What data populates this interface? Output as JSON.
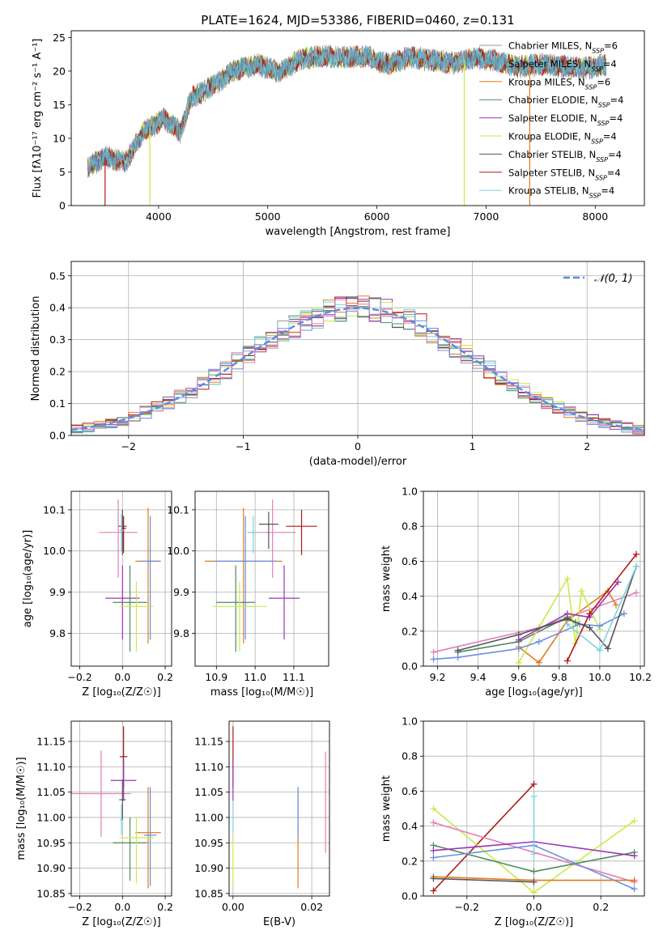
{
  "colors": {
    "Chabrier MILES": "#999999",
    "Salpeter MILES": "#5aa8c8",
    "Kroupa MILES": "#e07b20",
    "Chabrier ELODIE": "#4f8a5f",
    "Salpeter ELODIE": "#9b35b5",
    "Kroupa ELODIE": "#c9ea4a",
    "Chabrier STELIB": "#555555",
    "Salpeter STELIB": "#b01818",
    "Kroupa STELIB": "#7fd3de",
    "blue": "#6a8fe0",
    "pink": "#e27fba",
    "normal": "#5b8be0"
  },
  "chart_data": [
    {
      "id": "spectrum",
      "type": "line",
      "title": "PLATE=1624, MJD=53386, FIBERID=0460, z=0.131",
      "xlabel": "wavelength [Angstrom, rest frame]",
      "ylabel": "Flux [fλ10⁻¹⁷ erg cm⁻² s⁻¹ A⁻¹]",
      "xlim": [
        3200,
        8450
      ],
      "ylim": [
        0,
        26
      ],
      "xticks": [
        "4000",
        "5000",
        "6000",
        "7000",
        "8000"
      ],
      "xtick_values": [
        4000,
        5000,
        6000,
        7000,
        8000
      ],
      "yticks": [
        "0",
        "5",
        "10",
        "15",
        "20",
        "25"
      ],
      "ytick_values": [
        0,
        5,
        10,
        15,
        20,
        25
      ],
      "grid": false,
      "legend_position": "top-right",
      "legend": [
        {
          "label": "Chabrier MILES, N",
          "sub": "SSP",
          "suffix": "=6",
          "color_key": "Chabrier MILES"
        },
        {
          "label": "Salpeter MILES, N",
          "sub": "SSP",
          "suffix": "=4",
          "color_key": "Salpeter MILES"
        },
        {
          "label": "Kroupa MILES, N",
          "sub": "SSP",
          "suffix": "=6",
          "color_key": "Kroupa MILES"
        },
        {
          "label": "Chabrier ELODIE, N",
          "sub": "SSP",
          "suffix": "=4",
          "color_key": "Chabrier ELODIE"
        },
        {
          "label": "Salpeter ELODIE, N",
          "sub": "SSP",
          "suffix": "=4",
          "color_key": "Salpeter ELODIE"
        },
        {
          "label": "Kroupa ELODIE, N",
          "sub": "SSP",
          "suffix": "=4",
          "color_key": "Kroupa ELODIE"
        },
        {
          "label": "Chabrier STELIB, N",
          "sub": "SSP",
          "suffix": "=4",
          "color_key": "Chabrier STELIB"
        },
        {
          "label": "Salpeter STELIB, N",
          "sub": "SSP",
          "suffix": "=4",
          "color_key": "Salpeter STELIB"
        },
        {
          "label": "Kroupa STELIB, N",
          "sub": "SSP",
          "suffix": "=4",
          "color_key": "Kroupa STELIB"
        }
      ],
      "envelope": {
        "x": [
          3350,
          3500,
          3700,
          3850,
          3950,
          4050,
          4200,
          4300,
          4500,
          4700,
          4900,
          5100,
          5300,
          5500,
          5700,
          5900,
          6100,
          6300,
          6500,
          6700,
          6900,
          7100,
          7300,
          7500,
          7700,
          7900,
          8100
        ],
        "y": [
          5.6,
          7.2,
          6.5,
          10.8,
          11.8,
          12.9,
          11.0,
          16.0,
          17.8,
          20.2,
          21.0,
          19.8,
          21.8,
          22.2,
          22.0,
          22.2,
          21.0,
          22.1,
          21.6,
          21.2,
          22.0,
          21.5,
          20.6,
          21.0,
          20.7,
          20.4,
          20.9
        ]
      },
      "dropouts": [
        {
          "x": 3510,
          "color_key": "Salpeter STELIB"
        },
        {
          "x": 3920,
          "color_key": "Kroupa ELODIE"
        },
        {
          "x": 6800,
          "color_key": "Kroupa ELODIE"
        },
        {
          "x": 7400,
          "color_key": "Kroupa MILES"
        }
      ]
    },
    {
      "id": "residuals",
      "type": "histogram",
      "xlabel": "(data-model)/error",
      "ylabel": "Normed distribution",
      "xlim": [
        -2.5,
        2.5
      ],
      "ylim": [
        0,
        0.545
      ],
      "xticks": [
        "−2",
        "−1",
        "0",
        "1",
        "2"
      ],
      "xtick_values": [
        -2,
        -1,
        0,
        1,
        2
      ],
      "yticks": [
        "0.0",
        "0.1",
        "0.2",
        "0.3",
        "0.4",
        "0.5"
      ],
      "ytick_values": [
        0,
        0.1,
        0.2,
        0.3,
        0.4,
        0.5
      ],
      "grid": true,
      "legend_position": "top-right",
      "legend": [
        {
          "label": "𝒩(0, 1)",
          "color_key": "normal",
          "style": "dashed"
        }
      ],
      "bin_width": 0.1,
      "x_start": -2.5,
      "series_color_keys": [
        "Chabrier MILES",
        "Kroupa MILES",
        "Chabrier ELODIE",
        "Salpeter ELODIE",
        "Kroupa ELODIE",
        "Chabrier STELIB",
        "Salpeter STELIB",
        "Kroupa STELIB",
        "blue",
        "pink"
      ]
    },
    {
      "id": "age-vs-Z",
      "type": "errorbar",
      "xlabel": "Z [log₁₀(Z/Z☉)]",
      "ylabel": "age  [log₁₀(age/yr)]",
      "xlim": [
        -0.24,
        0.23
      ],
      "ylim": [
        9.72,
        10.145
      ],
      "xticks": [
        "−0.2",
        "0.0",
        "0.2"
      ],
      "xtick_values": [
        -0.2,
        0.0,
        0.2
      ],
      "yticks": [
        "9.8",
        "9.9",
        "10.0",
        "10.1"
      ],
      "ytick_values": [
        9.8,
        9.9,
        10.0,
        10.1
      ],
      "grid": true,
      "points": [
        {
          "x": -0.02,
          "y": 10.045,
          "xerr": 0.09,
          "yerr_lo": 0.11,
          "yerr_hi": 0.08,
          "color_key": "pink"
        },
        {
          "x": 0.0,
          "y": 10.06,
          "xerr": 0.02,
          "yerr_lo": 0.07,
          "yerr_hi": 0.04,
          "color_key": "Chabrier STELIB"
        },
        {
          "x": 0.005,
          "y": 10.055,
          "xerr": 0.012,
          "yerr_lo": 0.06,
          "yerr_hi": 0.03,
          "color_key": "Salpeter STELIB"
        },
        {
          "x": -0.005,
          "y": 10.05,
          "xerr": 0.01,
          "yerr_lo": 0.05,
          "yerr_hi": 0.04,
          "color_key": "Kroupa STELIB"
        },
        {
          "x": 0.12,
          "y": 9.975,
          "xerr": 0.06,
          "yerr_lo": 0.2,
          "yerr_hi": 0.13,
          "color_key": "Kroupa MILES"
        },
        {
          "x": 0.13,
          "y": 9.975,
          "xerr": 0.04,
          "yerr_lo": 0.19,
          "yerr_hi": 0.11,
          "color_key": "blue"
        },
        {
          "x": 0.0,
          "y": 9.885,
          "xerr": 0.08,
          "yerr_lo": 0.1,
          "yerr_hi": 0.08,
          "color_key": "Salpeter ELODIE"
        },
        {
          "x": 0.035,
          "y": 9.875,
          "xerr": 0.08,
          "yerr_lo": 0.12,
          "yerr_hi": 0.09,
          "color_key": "Chabrier ELODIE"
        },
        {
          "x": 0.065,
          "y": 9.865,
          "xerr": 0.08,
          "yerr_lo": 0.11,
          "yerr_hi": 0.06,
          "color_key": "Kroupa ELODIE"
        }
      ]
    },
    {
      "id": "age-vs-mass",
      "type": "errorbar",
      "xlabel": "mass [log₁₀(M/M☉)]",
      "ylabel": "",
      "xlim": [
        10.845,
        11.19
      ],
      "ylim": [
        9.72,
        10.145
      ],
      "xticks": [
        "10.9",
        "11.0",
        "11.1"
      ],
      "xtick_values": [
        10.9,
        11.0,
        11.1
      ],
      "yticks": [
        "9.8",
        "9.9",
        "10.0",
        "10.1"
      ],
      "ytick_values": [
        9.8,
        9.9,
        10.0,
        10.1
      ],
      "grid": true,
      "points": [
        {
          "x": 11.045,
          "y": 10.045,
          "xerr": 0.06,
          "yerr_lo": 0.11,
          "yerr_hi": 0.08,
          "color_key": "pink"
        },
        {
          "x": 11.12,
          "y": 10.06,
          "xerr": 0.04,
          "yerr_lo": 0.07,
          "yerr_hi": 0.04,
          "color_key": "Salpeter STELIB"
        },
        {
          "x": 11.035,
          "y": 10.065,
          "xerr": 0.025,
          "yerr_lo": 0.06,
          "yerr_hi": 0.03,
          "color_key": "Chabrier STELIB"
        },
        {
          "x": 10.995,
          "y": 10.045,
          "xerr": 0.015,
          "yerr_lo": 0.05,
          "yerr_hi": 0.04,
          "color_key": "Kroupa STELIB"
        },
        {
          "x": 10.97,
          "y": 9.975,
          "xerr": 0.1,
          "yerr_lo": 0.2,
          "yerr_hi": 0.13,
          "color_key": "Kroupa MILES"
        },
        {
          "x": 10.975,
          "y": 9.975,
          "xerr": 0.08,
          "yerr_lo": 0.19,
          "yerr_hi": 0.11,
          "color_key": "blue"
        },
        {
          "x": 11.075,
          "y": 9.885,
          "xerr": 0.04,
          "yerr_lo": 0.1,
          "yerr_hi": 0.08,
          "color_key": "Salpeter ELODIE"
        },
        {
          "x": 10.95,
          "y": 9.875,
          "xerr": 0.05,
          "yerr_lo": 0.12,
          "yerr_hi": 0.09,
          "color_key": "Chabrier ELODIE"
        },
        {
          "x": 10.96,
          "y": 9.865,
          "xerr": 0.07,
          "yerr_lo": 0.11,
          "yerr_hi": 0.06,
          "color_key": "Kroupa ELODIE"
        }
      ]
    },
    {
      "id": "mass-weight-vs-age",
      "type": "line",
      "xlabel": "age  [log₁₀(age/yr)]",
      "ylabel": "mass weight",
      "xlim": [
        9.13,
        10.22
      ],
      "ylim": [
        0,
        1
      ],
      "xticks": [
        "9.2",
        "9.4",
        "9.6",
        "9.8",
        "10.0",
        "10.2"
      ],
      "xtick_values": [
        9.2,
        9.4,
        9.6,
        9.8,
        10.0,
        10.2
      ],
      "yticks": [
        "0.0",
        "0.2",
        "0.4",
        "0.6",
        "0.8",
        "1.0"
      ],
      "ytick_values": [
        0,
        0.2,
        0.4,
        0.6,
        0.8,
        1.0
      ],
      "grid": true,
      "series": [
        {
          "color_key": "pink",
          "x": [
            9.18,
            9.7,
            10.18
          ],
          "y": [
            0.08,
            0.22,
            0.42
          ]
        },
        {
          "color_key": "Chabrier ELODIE",
          "x": [
            9.3,
            9.6,
            9.84,
            9.88
          ],
          "y": [
            0.08,
            0.14,
            0.28,
            0.25
          ]
        },
        {
          "color_key": "Kroupa MILES",
          "x": [
            9.6,
            9.7,
            9.84,
            10.04,
            10.08
          ],
          "y": [
            0.11,
            0.02,
            0.26,
            0.43,
            0.35
          ]
        },
        {
          "color_key": "Kroupa ELODIE",
          "x": [
            9.6,
            9.84,
            9.88,
            9.91,
            10.0
          ],
          "y": [
            0.02,
            0.5,
            0.13,
            0.43,
            0.21
          ]
        },
        {
          "color_key": "Salpeter ELODIE",
          "x": [
            9.6,
            9.84,
            9.95,
            10.09
          ],
          "y": [
            0.15,
            0.3,
            0.28,
            0.48
          ]
        },
        {
          "color_key": "blue",
          "x": [
            9.18,
            9.3,
            9.6,
            9.7,
            9.9,
            10.0,
            10.12
          ],
          "y": [
            0.04,
            0.05,
            0.1,
            0.14,
            0.24,
            0.23,
            0.3
          ]
        },
        {
          "color_key": "Chabrier STELIB",
          "x": [
            9.3,
            9.6,
            9.84,
            9.95,
            10.04,
            10.18
          ],
          "y": [
            0.09,
            0.18,
            0.27,
            0.22,
            0.1,
            0.57
          ]
        },
        {
          "color_key": "Salpeter STELIB",
          "x": [
            9.84,
            9.95,
            10.18
          ],
          "y": [
            0.03,
            0.3,
            0.64
          ]
        },
        {
          "color_key": "Kroupa STELIB",
          "x": [
            9.84,
            10.0,
            10.18
          ],
          "y": [
            0.24,
            0.09,
            0.57
          ]
        }
      ]
    },
    {
      "id": "mass-vs-Z",
      "type": "errorbar",
      "xlabel": "Z [log₁₀(Z/Z☉)]",
      "ylabel": "mass [log₁₀(M/M☉)]",
      "xlim": [
        -0.24,
        0.23
      ],
      "ylim": [
        10.845,
        11.19
      ],
      "xticks": [
        "−0.2",
        "0.0",
        "0.2"
      ],
      "xtick_values": [
        -0.2,
        0.0,
        0.2
      ],
      "yticks": [
        "10.85",
        "10.90",
        "10.95",
        "11.00",
        "11.05",
        "11.10",
        "11.15"
      ],
      "ytick_values": [
        10.85,
        10.9,
        10.95,
        11.0,
        11.05,
        11.1,
        11.15
      ],
      "grid": true,
      "points": [
        {
          "x": 0.005,
          "y": 11.12,
          "xerr": 0.018,
          "yerr_lo": 0.06,
          "yerr_hi": 0.06,
          "color_key": "Salpeter STELIB"
        },
        {
          "x": -0.1,
          "y": 11.047,
          "xerr": 0.14,
          "yerr_lo": 0.085,
          "yerr_hi": 0.085,
          "color_key": "pink"
        },
        {
          "x": 0.005,
          "y": 11.073,
          "xerr": 0.06,
          "yerr_lo": 0.04,
          "yerr_hi": 0.04,
          "color_key": "Salpeter ELODIE"
        },
        {
          "x": 0.0,
          "y": 11.035,
          "xerr": 0.015,
          "yerr_lo": 0.04,
          "yerr_hi": 0.04,
          "color_key": "Chabrier STELIB"
        },
        {
          "x": 0.12,
          "y": 10.97,
          "xerr": 0.06,
          "yerr_lo": 0.11,
          "yerr_hi": 0.09,
          "color_key": "Kroupa MILES"
        },
        {
          "x": 0.13,
          "y": 10.965,
          "xerr": 0.03,
          "yerr_lo": 0.1,
          "yerr_hi": 0.095,
          "color_key": "blue"
        },
        {
          "x": -0.005,
          "y": 10.995,
          "xerr": 0.008,
          "yerr_lo": 0.03,
          "yerr_hi": 0.03,
          "color_key": "Kroupa STELIB"
        },
        {
          "x": 0.035,
          "y": 10.95,
          "xerr": 0.08,
          "yerr_lo": 0.075,
          "yerr_hi": 0.05,
          "color_key": "Chabrier ELODIE"
        },
        {
          "x": 0.065,
          "y": 10.96,
          "xerr": 0.08,
          "yerr_lo": 0.09,
          "yerr_hi": 0.04,
          "color_key": "Kroupa ELODIE"
        }
      ]
    },
    {
      "id": "mass-vs-ebv",
      "type": "errorbar",
      "xlabel": "E(B-V)",
      "ylabel": "",
      "xlim": [
        -0.001,
        0.0245
      ],
      "ylim": [
        10.845,
        11.19
      ],
      "xticks": [
        "0.00",
        "0.02"
      ],
      "xtick_values": [
        0.0,
        0.02
      ],
      "yticks": [
        "10.85",
        "10.90",
        "10.95",
        "11.00",
        "11.05",
        "11.10",
        "11.15"
      ],
      "ytick_values": [
        10.85,
        10.9,
        10.95,
        11.0,
        11.05,
        11.1,
        11.15
      ],
      "grid": true,
      "points": [
        {
          "x": 0.0,
          "y": 11.12,
          "xerr": 0,
          "yerr_lo": 0.06,
          "yerr_hi": 0.06,
          "color_key": "Salpeter STELIB"
        },
        {
          "x": 0.0,
          "y": 11.073,
          "xerr": 0,
          "yerr_lo": 0.04,
          "yerr_hi": 0.04,
          "color_key": "Salpeter ELODIE"
        },
        {
          "x": 0.0,
          "y": 11.0,
          "xerr": 0,
          "yerr_lo": 0.03,
          "yerr_hi": 0.03,
          "color_key": "Kroupa STELIB"
        },
        {
          "x": 0.0,
          "y": 10.92,
          "xerr": 0,
          "yerr_lo": 0.05,
          "yerr_hi": 0.04,
          "color_key": "Kroupa ELODIE"
        },
        {
          "x": 0.0165,
          "y": 10.96,
          "xerr": 0,
          "yerr_lo": 0.1,
          "yerr_hi": 0.1,
          "color_key": "Kroupa MILES"
        },
        {
          "x": 0.0165,
          "y": 11.01,
          "xerr": 0,
          "yerr_lo": 0.05,
          "yerr_hi": 0.05,
          "color_key": "blue"
        },
        {
          "x": 0.0235,
          "y": 11.03,
          "xerr": 0,
          "yerr_lo": 0.1,
          "yerr_hi": 0.1,
          "color_key": "pink"
        }
      ]
    },
    {
      "id": "mass-weight-vs-Z",
      "type": "line",
      "xlabel": "Z [log₁₀(Z/Z☉)]",
      "ylabel": "mass weight",
      "xlim": [
        -0.33,
        0.33
      ],
      "ylim": [
        0,
        1
      ],
      "xticks": [
        "−0.2",
        "0.0",
        "0.2"
      ],
      "xtick_values": [
        -0.2,
        0.0,
        0.2
      ],
      "yticks": [
        "0.0",
        "0.2",
        "0.4",
        "0.6",
        "0.8",
        "1.0"
      ],
      "ytick_values": [
        0,
        0.2,
        0.4,
        0.6,
        0.8,
        1.0
      ],
      "grid": true,
      "series": [
        {
          "color_key": "Salpeter STELIB",
          "x": [
            -0.3,
            0.0
          ],
          "y": [
            0.03,
            0.64
          ]
        },
        {
          "color_key": "Kroupa ELODIE",
          "x": [
            -0.3,
            0.0,
            0.3
          ],
          "y": [
            0.5,
            0.02,
            0.43
          ]
        },
        {
          "color_key": "pink",
          "x": [
            -0.3,
            0.3
          ],
          "y": [
            0.42,
            0.08
          ]
        },
        {
          "color_key": "Chabrier ELODIE",
          "x": [
            -0.3,
            0.0,
            0.3
          ],
          "y": [
            0.29,
            0.14,
            0.25
          ]
        },
        {
          "color_key": "Salpeter ELODIE",
          "x": [
            -0.3,
            0.0,
            0.3
          ],
          "y": [
            0.26,
            0.31,
            0.23
          ]
        },
        {
          "color_key": "blue",
          "x": [
            -0.3,
            0.0,
            0.3
          ],
          "y": [
            0.22,
            0.29,
            0.04
          ]
        },
        {
          "color_key": "Kroupa MILES",
          "x": [
            -0.3,
            0.0,
            0.3
          ],
          "y": [
            0.11,
            0.09,
            0.09
          ]
        },
        {
          "color_key": "Chabrier STELIB",
          "x": [
            -0.3,
            0.0
          ],
          "y": [
            0.1,
            0.08
          ]
        },
        {
          "color_key": "Kroupa STELIB",
          "x": [
            0.0,
            0.0
          ],
          "y": [
            0.24,
            0.57
          ]
        }
      ]
    }
  ]
}
